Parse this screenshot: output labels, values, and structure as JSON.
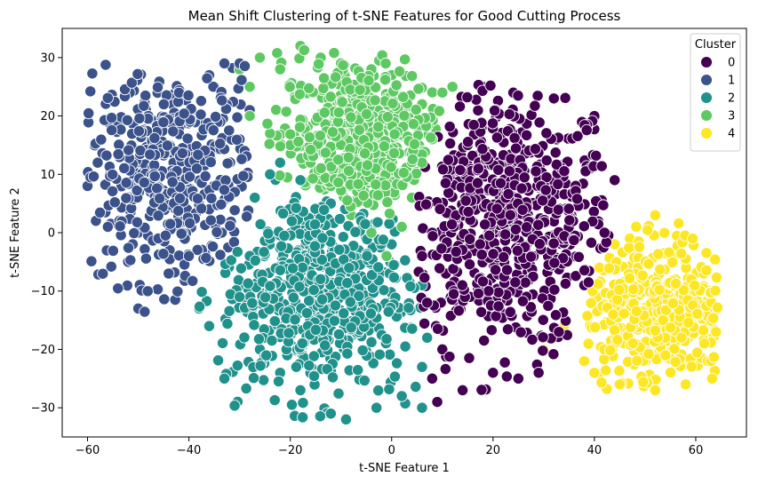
{
  "chart_data": {
    "type": "scatter",
    "title": "Mean Shift Clustering of t-SNE Features for Good Cutting Process",
    "xlabel": "t-SNE Feature 1",
    "ylabel": "t-SNE Feature 2",
    "xlim": [
      -65,
      70
    ],
    "ylim": [
      -35,
      35
    ],
    "xticks": [
      -60,
      -40,
      -20,
      0,
      20,
      40,
      60
    ],
    "yticks": [
      -30,
      -20,
      -10,
      0,
      10,
      20,
      30
    ],
    "xtick_labels": [
      "−60",
      "−40",
      "−20",
      "0",
      "20",
      "40",
      "60"
    ],
    "ytick_labels": [
      "−30",
      "−20",
      "−10",
      "0",
      "10",
      "20",
      "30"
    ],
    "grid": false,
    "legend": {
      "title": "Cluster",
      "placement": "top-right"
    },
    "series": [
      {
        "name": "0",
        "color": "#440154",
        "center": [
          22,
          2
        ],
        "spread": [
          11,
          11
        ],
        "extent": [
          [
            5,
            43
          ],
          [
            -28,
            26
          ]
        ],
        "count": 620,
        "points": [
          [
            10,
            24
          ],
          [
            18,
            25
          ],
          [
            24,
            24
          ],
          [
            32,
            23
          ],
          [
            40,
            20
          ],
          [
            44,
            9
          ],
          [
            42,
            0
          ],
          [
            38,
            -9
          ],
          [
            33,
            -17
          ],
          [
            29,
            -24
          ],
          [
            25,
            -25
          ],
          [
            20,
            -24
          ],
          [
            14,
            -27
          ],
          [
            9,
            -29
          ],
          [
            8,
            -25
          ],
          [
            10,
            -20
          ],
          [
            7,
            -12
          ],
          [
            6,
            -4
          ],
          [
            8,
            0
          ],
          [
            12,
            8
          ],
          [
            15,
            15
          ]
        ]
      },
      {
        "name": "1",
        "color": "#3b528b",
        "center": [
          -44,
          10
        ],
        "spread": [
          9,
          9
        ],
        "extent": [
          [
            -60,
            -28
          ],
          [
            -14,
            29
          ]
        ],
        "count": 440,
        "points": [
          [
            -58,
            12
          ],
          [
            -60,
            8
          ],
          [
            -56,
            19
          ],
          [
            -48,
            20
          ],
          [
            -43,
            23
          ],
          [
            -36,
            27
          ],
          [
            -33,
            29
          ],
          [
            -30,
            29
          ],
          [
            -28,
            21
          ],
          [
            -30,
            16
          ],
          [
            -36,
            4
          ],
          [
            -40,
            -4
          ],
          [
            -44,
            -7
          ],
          [
            -48,
            -10
          ],
          [
            -50,
            -13
          ],
          [
            -52,
            -5
          ],
          [
            -56,
            1
          ],
          [
            -50,
            0
          ],
          [
            -52,
            14
          ],
          [
            -40,
            20
          ]
        ]
      },
      {
        "name": "2",
        "color": "#21918c",
        "center": [
          -14,
          -10
        ],
        "spread": [
          10,
          9
        ],
        "extent": [
          [
            -38,
            8
          ],
          [
            -32,
            13
          ]
        ],
        "count": 560,
        "points": [
          [
            -38,
            -13
          ],
          [
            -36,
            -16
          ],
          [
            -33,
            -25
          ],
          [
            -30,
            -11
          ],
          [
            -28,
            -4
          ],
          [
            -27,
            6
          ],
          [
            -24,
            10
          ],
          [
            -22,
            12
          ],
          [
            -18,
            9
          ],
          [
            -12,
            5
          ],
          [
            -6,
            2
          ],
          [
            0,
            -2
          ],
          [
            6,
            -9
          ],
          [
            7,
            -18
          ],
          [
            6,
            -23
          ],
          [
            6,
            -30
          ],
          [
            2,
            -28
          ],
          [
            -3,
            -30
          ],
          [
            -9,
            -32
          ],
          [
            -12,
            -31
          ],
          [
            -18,
            -27
          ],
          [
            -22,
            -24
          ],
          [
            -26,
            -20
          ],
          [
            -18,
            -4
          ],
          [
            -10,
            -14
          ]
        ]
      },
      {
        "name": "3",
        "color": "#5ec962",
        "center": [
          -6,
          16
        ],
        "spread": [
          8,
          7
        ],
        "extent": [
          [
            -30,
            12
          ],
          [
            -1,
            32
          ]
        ],
        "count": 480,
        "points": [
          [
            -30,
            28
          ],
          [
            -28,
            25
          ],
          [
            -26,
            30
          ],
          [
            -22,
            28
          ],
          [
            -18,
            32
          ],
          [
            -14,
            30
          ],
          [
            -10,
            29
          ],
          [
            -4,
            28
          ],
          [
            0,
            27
          ],
          [
            6,
            22
          ],
          [
            10,
            24
          ],
          [
            12,
            25
          ],
          [
            8,
            16
          ],
          [
            6,
            12
          ],
          [
            4,
            6
          ],
          [
            2,
            1
          ],
          [
            -1,
            -4
          ],
          [
            -4,
            0
          ],
          [
            -8,
            3
          ],
          [
            -12,
            8
          ],
          [
            -16,
            12
          ],
          [
            -20,
            15
          ],
          [
            -24,
            17
          ],
          [
            -28,
            20
          ]
        ]
      },
      {
        "name": "4",
        "color": "#fde725",
        "center": [
          52,
          -13
        ],
        "spread": [
          7,
          6.5
        ],
        "extent": [
          [
            30,
            65
          ],
          [
            -28,
            3
          ]
        ],
        "count": 360,
        "points": [
          [
            30,
            -20
          ],
          [
            34,
            -16
          ],
          [
            38,
            -22
          ],
          [
            41,
            -6
          ],
          [
            44,
            -2
          ],
          [
            47,
            -1
          ],
          [
            52,
            3
          ],
          [
            55,
            -4
          ],
          [
            60,
            -10
          ],
          [
            62,
            -15
          ],
          [
            64,
            -17
          ],
          [
            63,
            -22
          ],
          [
            58,
            -26
          ],
          [
            52,
            -27
          ],
          [
            45,
            -26
          ],
          [
            40,
            -24
          ],
          [
            48,
            -15
          ],
          [
            54,
            -18
          ],
          [
            56,
            -8
          ]
        ]
      }
    ]
  }
}
